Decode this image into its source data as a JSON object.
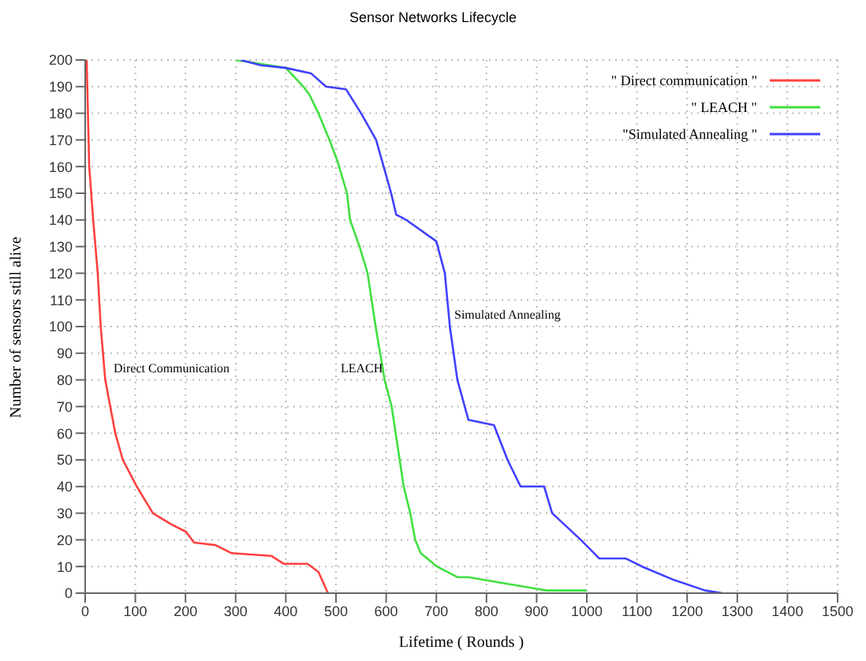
{
  "chart_data": {
    "type": "line",
    "title": "Sensor Networks Lifecycle",
    "xlabel": "Lifetime ( Rounds )",
    "ylabel": "Number of sensors still alive",
    "xlim": [
      0,
      1500
    ],
    "xticks": [
      0,
      100,
      200,
      300,
      400,
      500,
      600,
      700,
      800,
      900,
      1000,
      1100,
      1200,
      1300,
      1400,
      1500
    ],
    "ylim": [
      0,
      200
    ],
    "yticks": [
      0,
      10,
      20,
      30,
      40,
      50,
      60,
      70,
      80,
      90,
      100,
      110,
      120,
      130,
      140,
      150,
      160,
      170,
      180,
      190,
      200
    ],
    "grid": true,
    "legend": "top right",
    "marker": "none",
    "line_style": "solid",
    "series": [
      {
        "name": "\" Direct communication \"",
        "color": "#ff4040",
        "x": [
          3,
          8,
          16,
          25,
          31,
          40,
          50,
          60,
          75,
          103,
          135,
          170,
          201,
          217,
          260,
          292,
          371,
          396,
          443,
          465,
          484
        ],
        "values": [
          200,
          160,
          140,
          120,
          100,
          80,
          70,
          60,
          50,
          40,
          30,
          26,
          23,
          19,
          18,
          15,
          14,
          11,
          11,
          8,
          0
        ]
      },
      {
        "name": "\" LEACH \"",
        "color": "#40e040",
        "x": [
          300,
          350,
          400,
          435,
          447,
          465,
          487,
          503,
          522,
          528,
          547,
          563,
          579,
          597,
          611,
          619,
          635,
          648,
          658,
          669,
          701,
          742,
          764,
          826,
          889,
          920,
          1000
        ],
        "values": [
          200,
          null,
          197,
          190,
          187,
          180,
          170,
          162,
          150,
          140,
          130,
          120,
          100,
          80,
          70,
          60,
          40,
          30,
          20,
          15,
          10,
          6,
          6,
          4,
          2,
          1,
          1
        ]
      },
      {
        "name": "\"Simulated Annealing \"",
        "color": "#4040ff",
        "x": [
          310,
          350,
          400,
          450,
          480,
          520,
          550,
          580,
          595,
          610,
          620,
          640,
          700,
          717,
          727,
          742,
          764,
          815,
          842,
          868,
          915,
          931,
          988,
          1025,
          1078,
          1110,
          1173,
          1236,
          1270
        ],
        "values": [
          200,
          198,
          197,
          195,
          190,
          189,
          180,
          170,
          160,
          150,
          142,
          140,
          132,
          120,
          100,
          80,
          65,
          63,
          50,
          40,
          40,
          30,
          20,
          13,
          13,
          10,
          5,
          1,
          0
        ]
      }
    ],
    "annotations": [
      "Direct Communication",
      "LEACH",
      "Simulated Annealing"
    ]
  }
}
